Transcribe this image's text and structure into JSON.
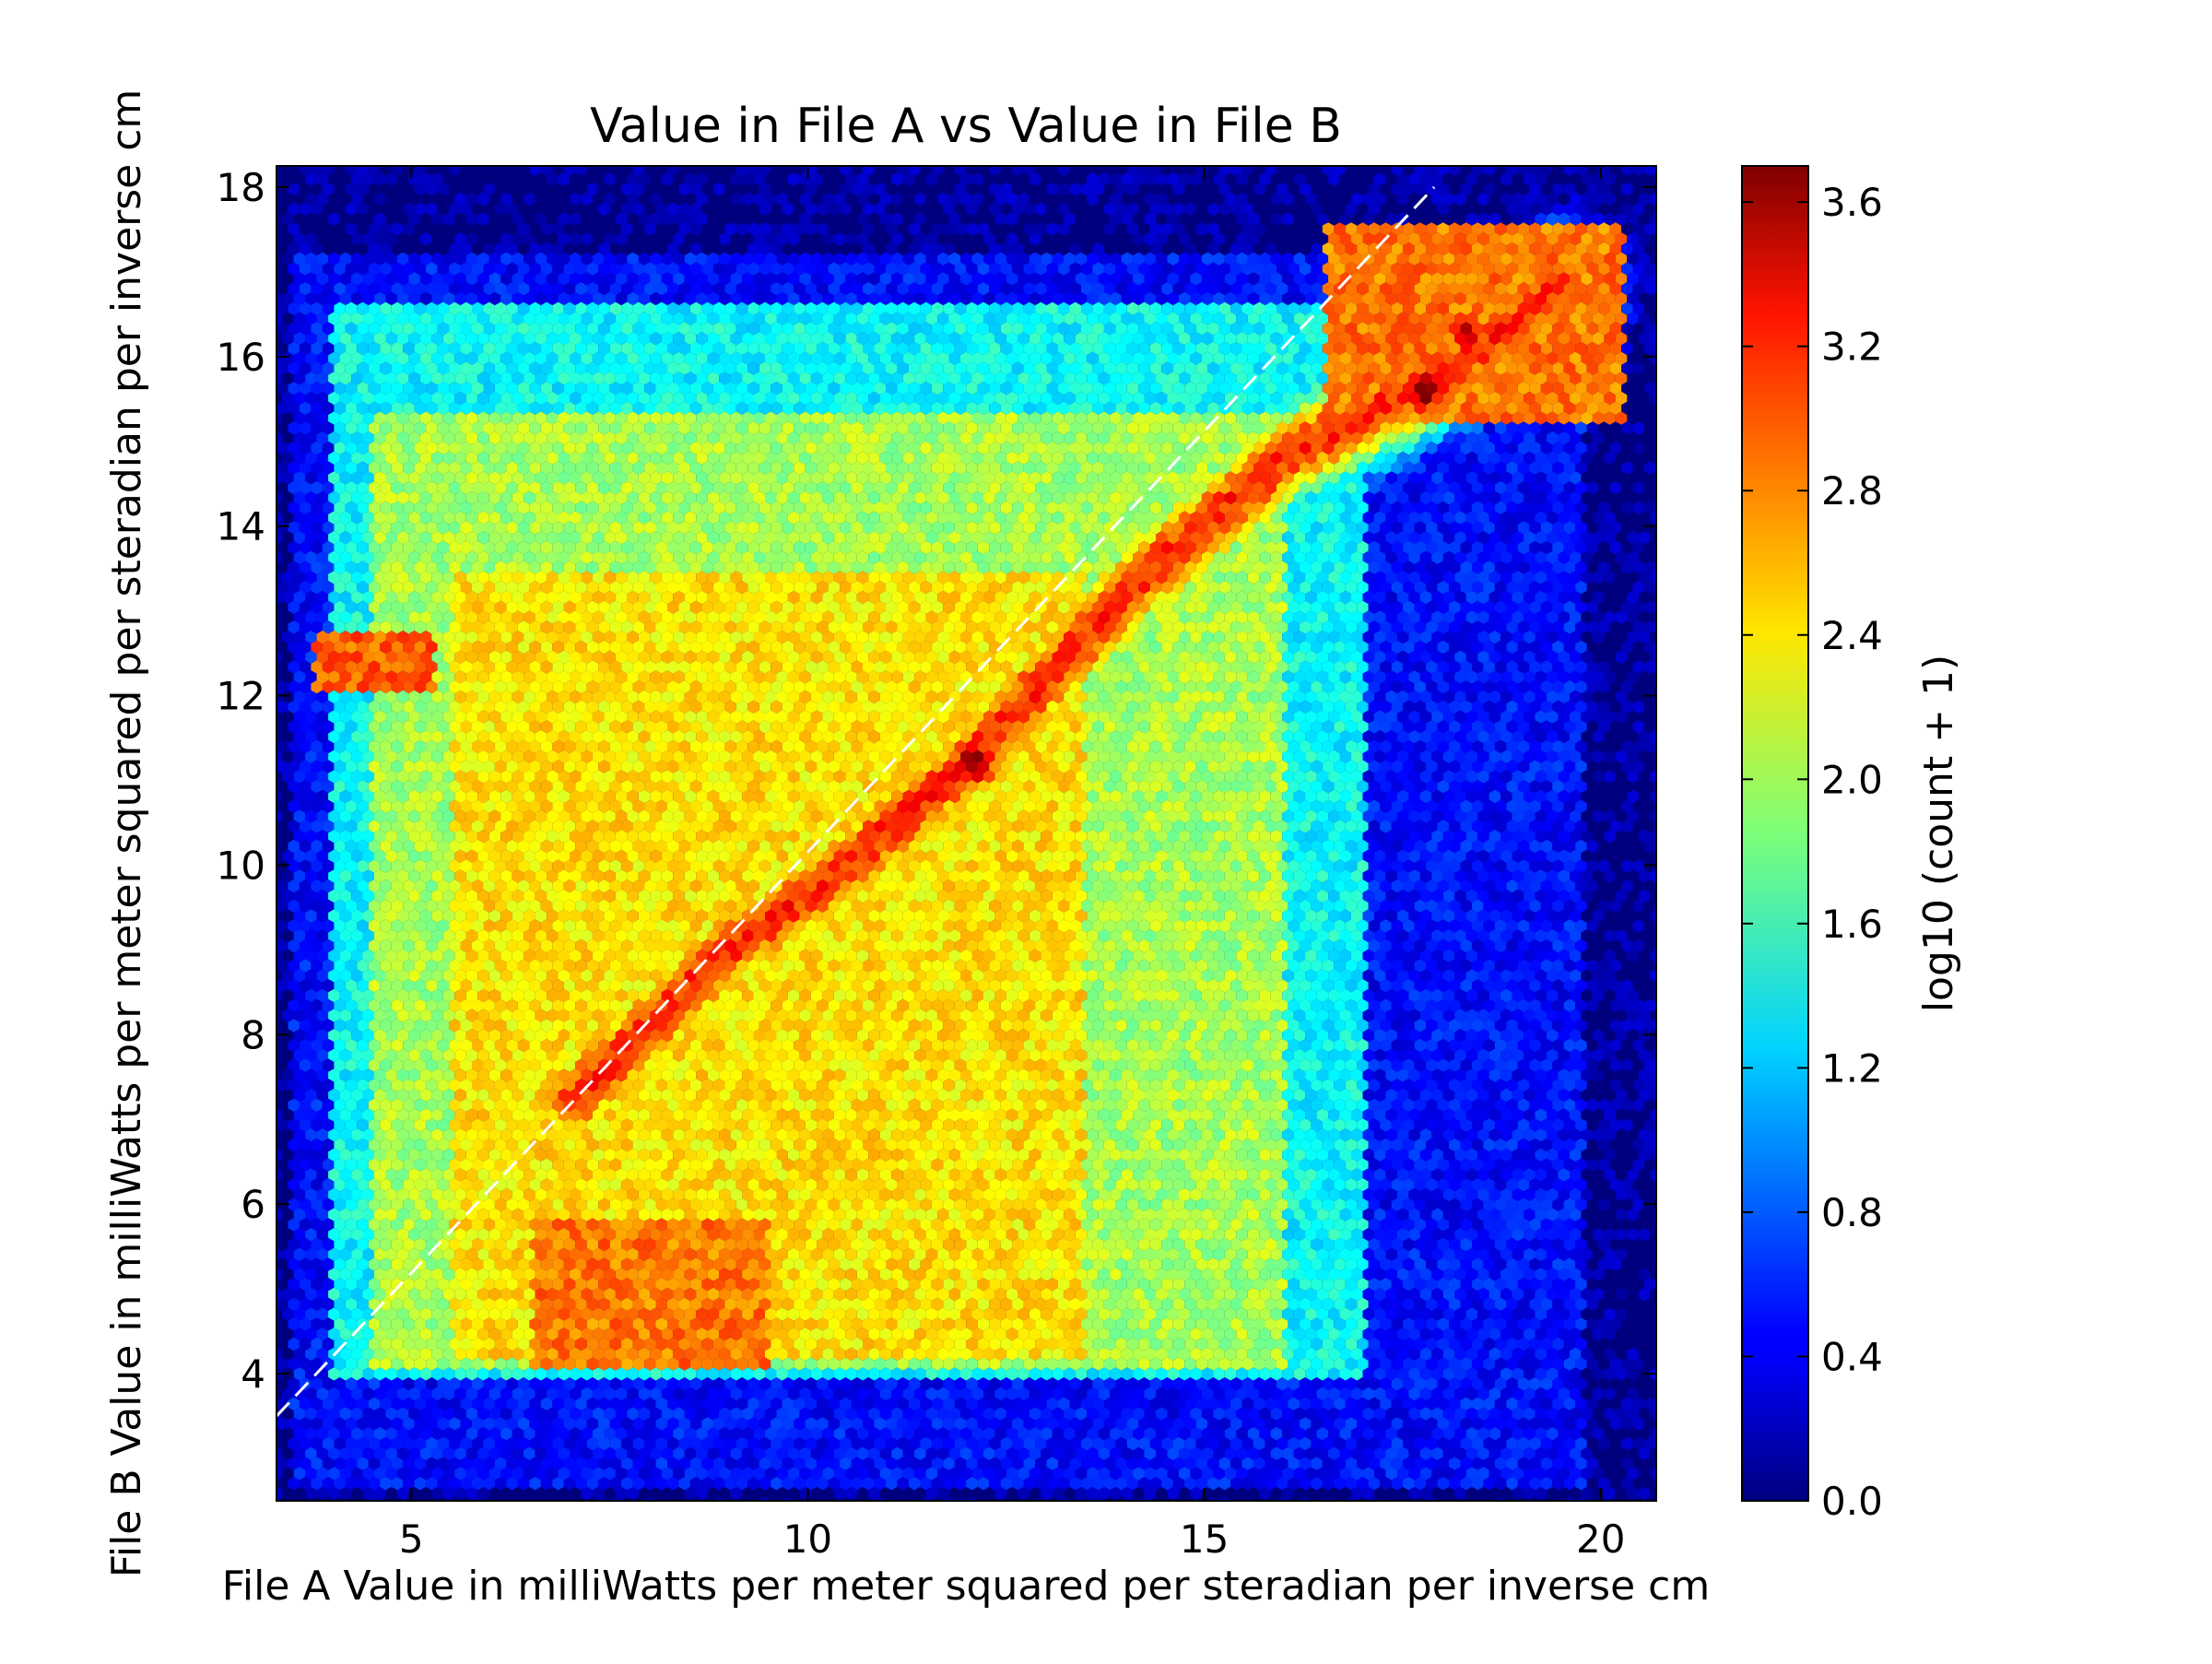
{
  "chart_data": {
    "type": "heatmap",
    "subtype": "hexbin",
    "title": "Value in File A vs Value in File B",
    "xlabel": "File A Value in milliWatts per meter squared per steradian per inverse cm",
    "ylabel": "File B Value in milliWatts per meter squared per steradian per inverse cm",
    "xlim": [
      3.3,
      20.7
    ],
    "ylim": [
      2.5,
      18.25
    ],
    "xticks": [
      5,
      10,
      15,
      20
    ],
    "yticks": [
      4,
      6,
      8,
      10,
      12,
      14,
      16,
      18
    ],
    "xtick_labels": [
      "5",
      "10",
      "15",
      "20"
    ],
    "ytick_labels": [
      "4",
      "6",
      "8",
      "10",
      "12",
      "14",
      "16",
      "18"
    ],
    "background_color": "#00007f",
    "colormap": "jet",
    "reference_line": {
      "style": "dashed",
      "color": "#ffffff",
      "points": [
        [
          3.3,
          3.5
        ],
        [
          17.9,
          18.0
        ]
      ]
    },
    "colorbar": {
      "label": "log10 (count + 1)",
      "range": [
        0.0,
        3.7
      ],
      "ticks": [
        0.0,
        0.4,
        0.8,
        1.2,
        1.6,
        2.0,
        2.4,
        2.8,
        3.2,
        3.6
      ],
      "tick_labels": [
        "0.0",
        "0.4",
        "0.8",
        "1.2",
        "1.6",
        "2.0",
        "2.4",
        "2.8",
        "3.2",
        "3.6"
      ]
    },
    "density_regions": [
      {
        "x_range": [
          3.3,
          20.7
        ],
        "y_range": [
          2.5,
          18.25
        ],
        "level": 0.1
      },
      {
        "x_range": [
          3.5,
          19.8
        ],
        "y_range": [
          2.6,
          17.2
        ],
        "level": 0.5
      },
      {
        "x_range": [
          4.0,
          17.0
        ],
        "y_range": [
          3.9,
          16.6
        ],
        "level": 1.4
      },
      {
        "x_range": [
          4.5,
          16.0
        ],
        "y_range": [
          4.1,
          15.3
        ],
        "level": 2.0
      },
      {
        "x_range": [
          5.5,
          13.5
        ],
        "y_range": [
          4.2,
          13.5
        ],
        "level": 2.4
      },
      {
        "x_range": [
          6.5,
          9.5
        ],
        "y_range": [
          4.0,
          5.8
        ],
        "level": 2.8
      },
      {
        "x_range": [
          3.8,
          5.3
        ],
        "y_range": [
          12.0,
          12.7
        ],
        "level": 2.9
      },
      {
        "x_range": [
          16.5,
          20.3
        ],
        "y_range": [
          15.2,
          17.6
        ],
        "level": 2.8
      }
    ],
    "ridge": {
      "points": [
        [
          7.0,
          7.2
        ],
        [
          9.0,
          9.0
        ],
        [
          10.5,
          10.0
        ],
        [
          12.0,
          11.2
        ],
        [
          14.0,
          13.2
        ],
        [
          16.0,
          14.8
        ],
        [
          18.0,
          15.8
        ],
        [
          19.5,
          16.8
        ]
      ],
      "level": 3.1
    },
    "peaks": [
      {
        "x": 12.1,
        "y": 11.2,
        "level": 3.7
      },
      {
        "x": 17.8,
        "y": 15.6,
        "level": 3.7
      },
      {
        "x": 18.3,
        "y": 16.3,
        "level": 3.5
      }
    ]
  }
}
